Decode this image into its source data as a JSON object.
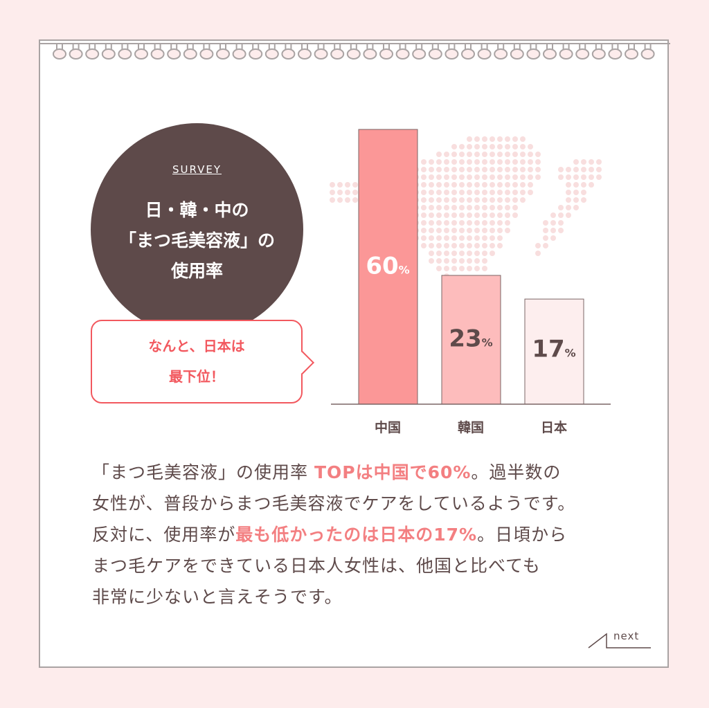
{
  "survey_label": "SURVEY",
  "title_lines": [
    "日・韓・中の",
    "「まつ毛美容液」の",
    "使用率"
  ],
  "callout_lines": [
    "なんと、日本は",
    "最下位！"
  ],
  "chart_data": {
    "type": "bar",
    "categories": [
      "中国",
      "韓国",
      "日本"
    ],
    "values": [
      60,
      23,
      17
    ],
    "unit": "%",
    "colors": [
      "#fb9797",
      "#fdbcbc",
      "#fdeeee"
    ],
    "label_colors": [
      "#ffffff",
      "#5e4a4a",
      "#5e4a4a"
    ]
  },
  "paragraph": [
    [
      {
        "t": "「まつ毛美容液」の使用率 "
      },
      {
        "t": "TOPは中国で60%",
        "hl": true
      },
      {
        "t": "。過半数の"
      }
    ],
    [
      {
        "t": "女性が、普段からまつ毛美容液でケアをしているようです。"
      }
    ],
    [
      {
        "t": "反対に、使用率が"
      },
      {
        "t": "最も低かったのは日本の17%",
        "hl": true
      },
      {
        "t": "。日頃から"
      }
    ],
    [
      {
        "t": "まつ毛ケアをできている日本人女性は、他国と比べても"
      }
    ],
    [
      {
        "t": "非常に少ないと言えそうです。"
      }
    ]
  ],
  "next_label": "next",
  "colors": {
    "background": "#fdecec",
    "circle": "#5e4a4a",
    "accent": "#f2585e",
    "highlight": "#f37f81",
    "text": "#5e4a4a"
  }
}
